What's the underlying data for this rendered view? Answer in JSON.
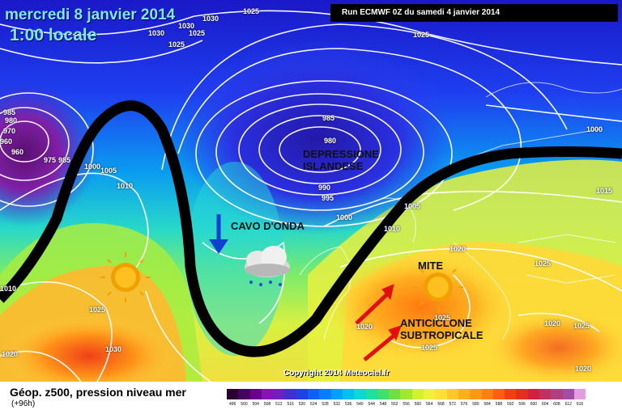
{
  "header": {
    "date": "mercredi 8 janvier 2014",
    "local_time": "1:00 locale",
    "run_info": "Run ECMWF 0Z du samedi 4 janvier 2014"
  },
  "annotations": {
    "depression": "DEPRESSIONE ISLANDESE",
    "trough": "CAVO D'ONDA",
    "mite": "MITE",
    "anticyclone": "ANTICICLONE SUBTROPICALE"
  },
  "isobars": [
    "1025",
    "1030",
    "1030",
    "1030",
    "1025",
    "1025",
    "1025",
    "985",
    "980",
    "970",
    "960",
    "960",
    "975",
    "985",
    "1000",
    "1005",
    "1010",
    "985",
    "980",
    "990",
    "995",
    "1000",
    "1005",
    "1010",
    "1015",
    "1000",
    "1020",
    "1025",
    "1020",
    "1025",
    "1020",
    "1025",
    "1010",
    "1025",
    "1030",
    "1020",
    "1020",
    "1025"
  ],
  "copyright": "Copyright 2014 Meteociel.fr",
  "legend": {
    "title": "Géop. z500, pression niveau mer",
    "subtitle": "(+96h)",
    "scale_values": [
      "496",
      "500",
      "504",
      "508",
      "512",
      "516",
      "520",
      "524",
      "528",
      "532",
      "536",
      "540",
      "544",
      "548",
      "552",
      "556",
      "560",
      "564",
      "568",
      "572",
      "576",
      "580",
      "584",
      "588",
      "592",
      "596",
      "600",
      "604",
      "608",
      "612",
      "616"
    ],
    "scale_colors": [
      "#2a0030",
      "#4a0060",
      "#6a0090",
      "#8a10b8",
      "#7020c0",
      "#4030d0",
      "#2040e0",
      "#1060f0",
      "#0080ff",
      "#00a0ff",
      "#00c0f0",
      "#10d8d0",
      "#20e0a0",
      "#40e070",
      "#70e040",
      "#a0e830",
      "#d0f030",
      "#f0f040",
      "#ffe040",
      "#ffc830",
      "#ffb020",
      "#ff9818",
      "#ff8010",
      "#ff6010",
      "#f04010",
      "#e03020",
      "#d02040",
      "#c03060",
      "#b04080",
      "#a050a0",
      "#e0a0e0"
    ]
  },
  "colors": {
    "trough_line": "#000000",
    "arrow_blue": "#1040d0",
    "arrow_red": "#e01010",
    "sun": "#f0a000"
  }
}
